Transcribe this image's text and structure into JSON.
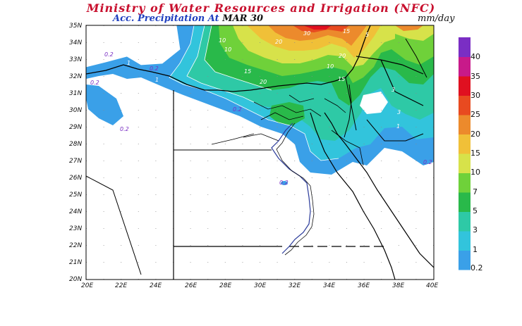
{
  "header": {
    "title": "Ministry of Water Resources and Irrigation (NFC)",
    "subtitle_field": "Acc. Precipitation",
    "subtitle_at": "At",
    "subtitle_date": "MAR 30",
    "units": "mm/day"
  },
  "axes": {
    "latitude_labels": [
      "35N",
      "34N",
      "33N",
      "32N",
      "31N",
      "30N",
      "29N",
      "28N",
      "27N",
      "26N",
      "25N",
      "24N",
      "23N",
      "22N",
      "21N",
      "20N"
    ],
    "longitude_labels": [
      "20E",
      "22E",
      "24E",
      "26E",
      "28E",
      "30E",
      "32E",
      "34E",
      "36E",
      "38E",
      "40E"
    ]
  },
  "legend": {
    "levels": [
      "0.2",
      "1",
      "3",
      "5",
      "7",
      "10",
      "15",
      "20",
      "25",
      "30",
      "35",
      "40"
    ],
    "colors": [
      "#3aa0e8",
      "#32c4dc",
      "#2ec9a6",
      "#29b94a",
      "#6fd13a",
      "#d7e24a",
      "#f0c038",
      "#ec8a2c",
      "#e84a20",
      "#e01020",
      "#c81a8a",
      "#7a2ec4"
    ]
  },
  "contour_labels": [
    "0.2",
    "0.2",
    "0.2",
    "0.2",
    "0.2",
    "0.2",
    "1",
    "1",
    "1",
    "3",
    "3",
    "5",
    "10",
    "10",
    "15",
    "15",
    "15",
    "20",
    "20",
    "20",
    "30",
    "10",
    "0.2"
  ],
  "colors": {
    "title": "#c8102e",
    "subtitle": "#1f3fbf",
    "borders": "#000000",
    "nile": "#2a3a9a"
  }
}
